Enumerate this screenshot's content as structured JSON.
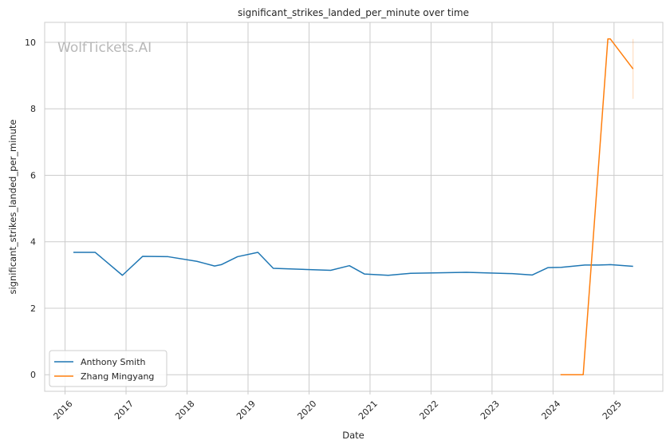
{
  "chart_data": {
    "type": "line",
    "title": "significant_strikes_landed_per_minute over time",
    "xlabel": "Date",
    "ylabel": "significant_strikes_landed_per_minute",
    "watermark": "WolfTickets.AI",
    "x_ticks": [
      "2016",
      "2017",
      "2018",
      "2019",
      "2020",
      "2021",
      "2022",
      "2023",
      "2024",
      "2025"
    ],
    "y_ticks": [
      "0",
      "2",
      "4",
      "6",
      "8",
      "10"
    ],
    "xlim": [
      "2015-09-01",
      "2025-10-20"
    ],
    "ylim": [
      -0.5,
      10.6
    ],
    "grid": true,
    "legend_position": "bottom-left",
    "series": [
      {
        "name": "Anthony Smith",
        "color": "#1f77b4",
        "points": [
          [
            "2016-02-20",
            3.68
          ],
          [
            "2016-06-30",
            3.68
          ],
          [
            "2016-12-10",
            2.99
          ],
          [
            "2017-04-10",
            3.56
          ],
          [
            "2017-09-10",
            3.55
          ],
          [
            "2018-03-01",
            3.41
          ],
          [
            "2018-06-15",
            3.27
          ],
          [
            "2018-07-25",
            3.31
          ],
          [
            "2018-10-30",
            3.55
          ],
          [
            "2019-03-01",
            3.68
          ],
          [
            "2019-06-01",
            3.2
          ],
          [
            "2020-05-10",
            3.14
          ],
          [
            "2020-08-30",
            3.28
          ],
          [
            "2020-11-28",
            3.03
          ],
          [
            "2021-04-20",
            2.99
          ],
          [
            "2021-09-01",
            3.05
          ],
          [
            "2022-08-01",
            3.08
          ],
          [
            "2023-05-01",
            3.04
          ],
          [
            "2023-08-30",
            3.0
          ],
          [
            "2023-12-01",
            3.22
          ],
          [
            "2024-02-20",
            3.23
          ],
          [
            "2024-07-10",
            3.3
          ],
          [
            "2024-10-01",
            3.3
          ],
          [
            "2024-12-10",
            3.31
          ],
          [
            "2025-04-25",
            3.26
          ]
        ]
      },
      {
        "name": "Zhang Mingyang",
        "color": "#ff7f0e",
        "points": [
          [
            "2024-02-15",
            0.0
          ],
          [
            "2024-06-30",
            0.0
          ],
          [
            "2024-11-25",
            10.1
          ],
          [
            "2024-12-10",
            10.1
          ],
          [
            "2025-04-25",
            9.2
          ]
        ],
        "error_band": {
          "x": "2025-04-25",
          "low": 8.3,
          "high": 10.1
        }
      }
    ]
  }
}
